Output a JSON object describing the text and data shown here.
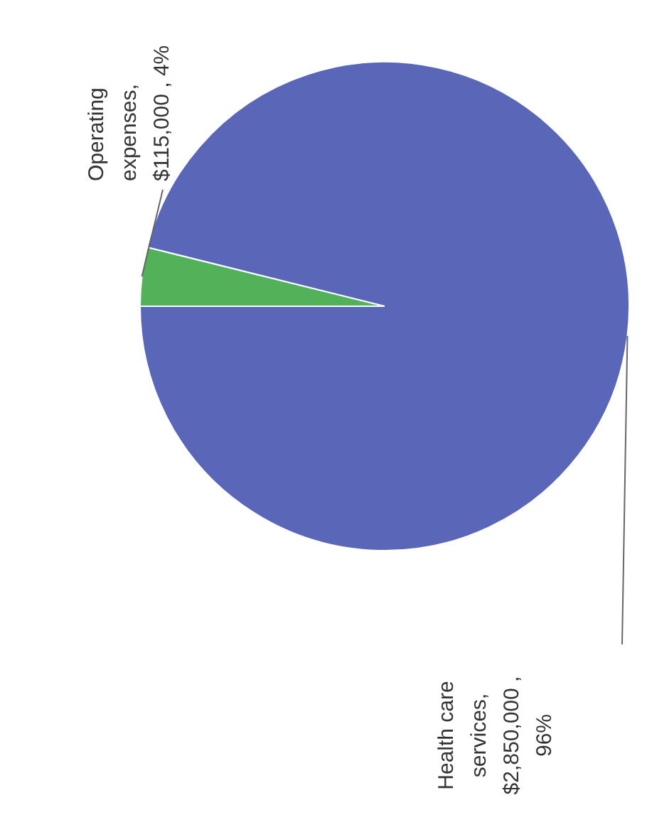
{
  "chart_data": {
    "type": "pie",
    "categories": [
      "Operating expenses",
      "Health care services"
    ],
    "values": [
      115000,
      2850000
    ],
    "colors": [
      "#52b25a",
      "#5a67b9"
    ],
    "value_labels": [
      ", $115,000 , 4%",
      ", $2,850,000 , 96%"
    ]
  }
}
